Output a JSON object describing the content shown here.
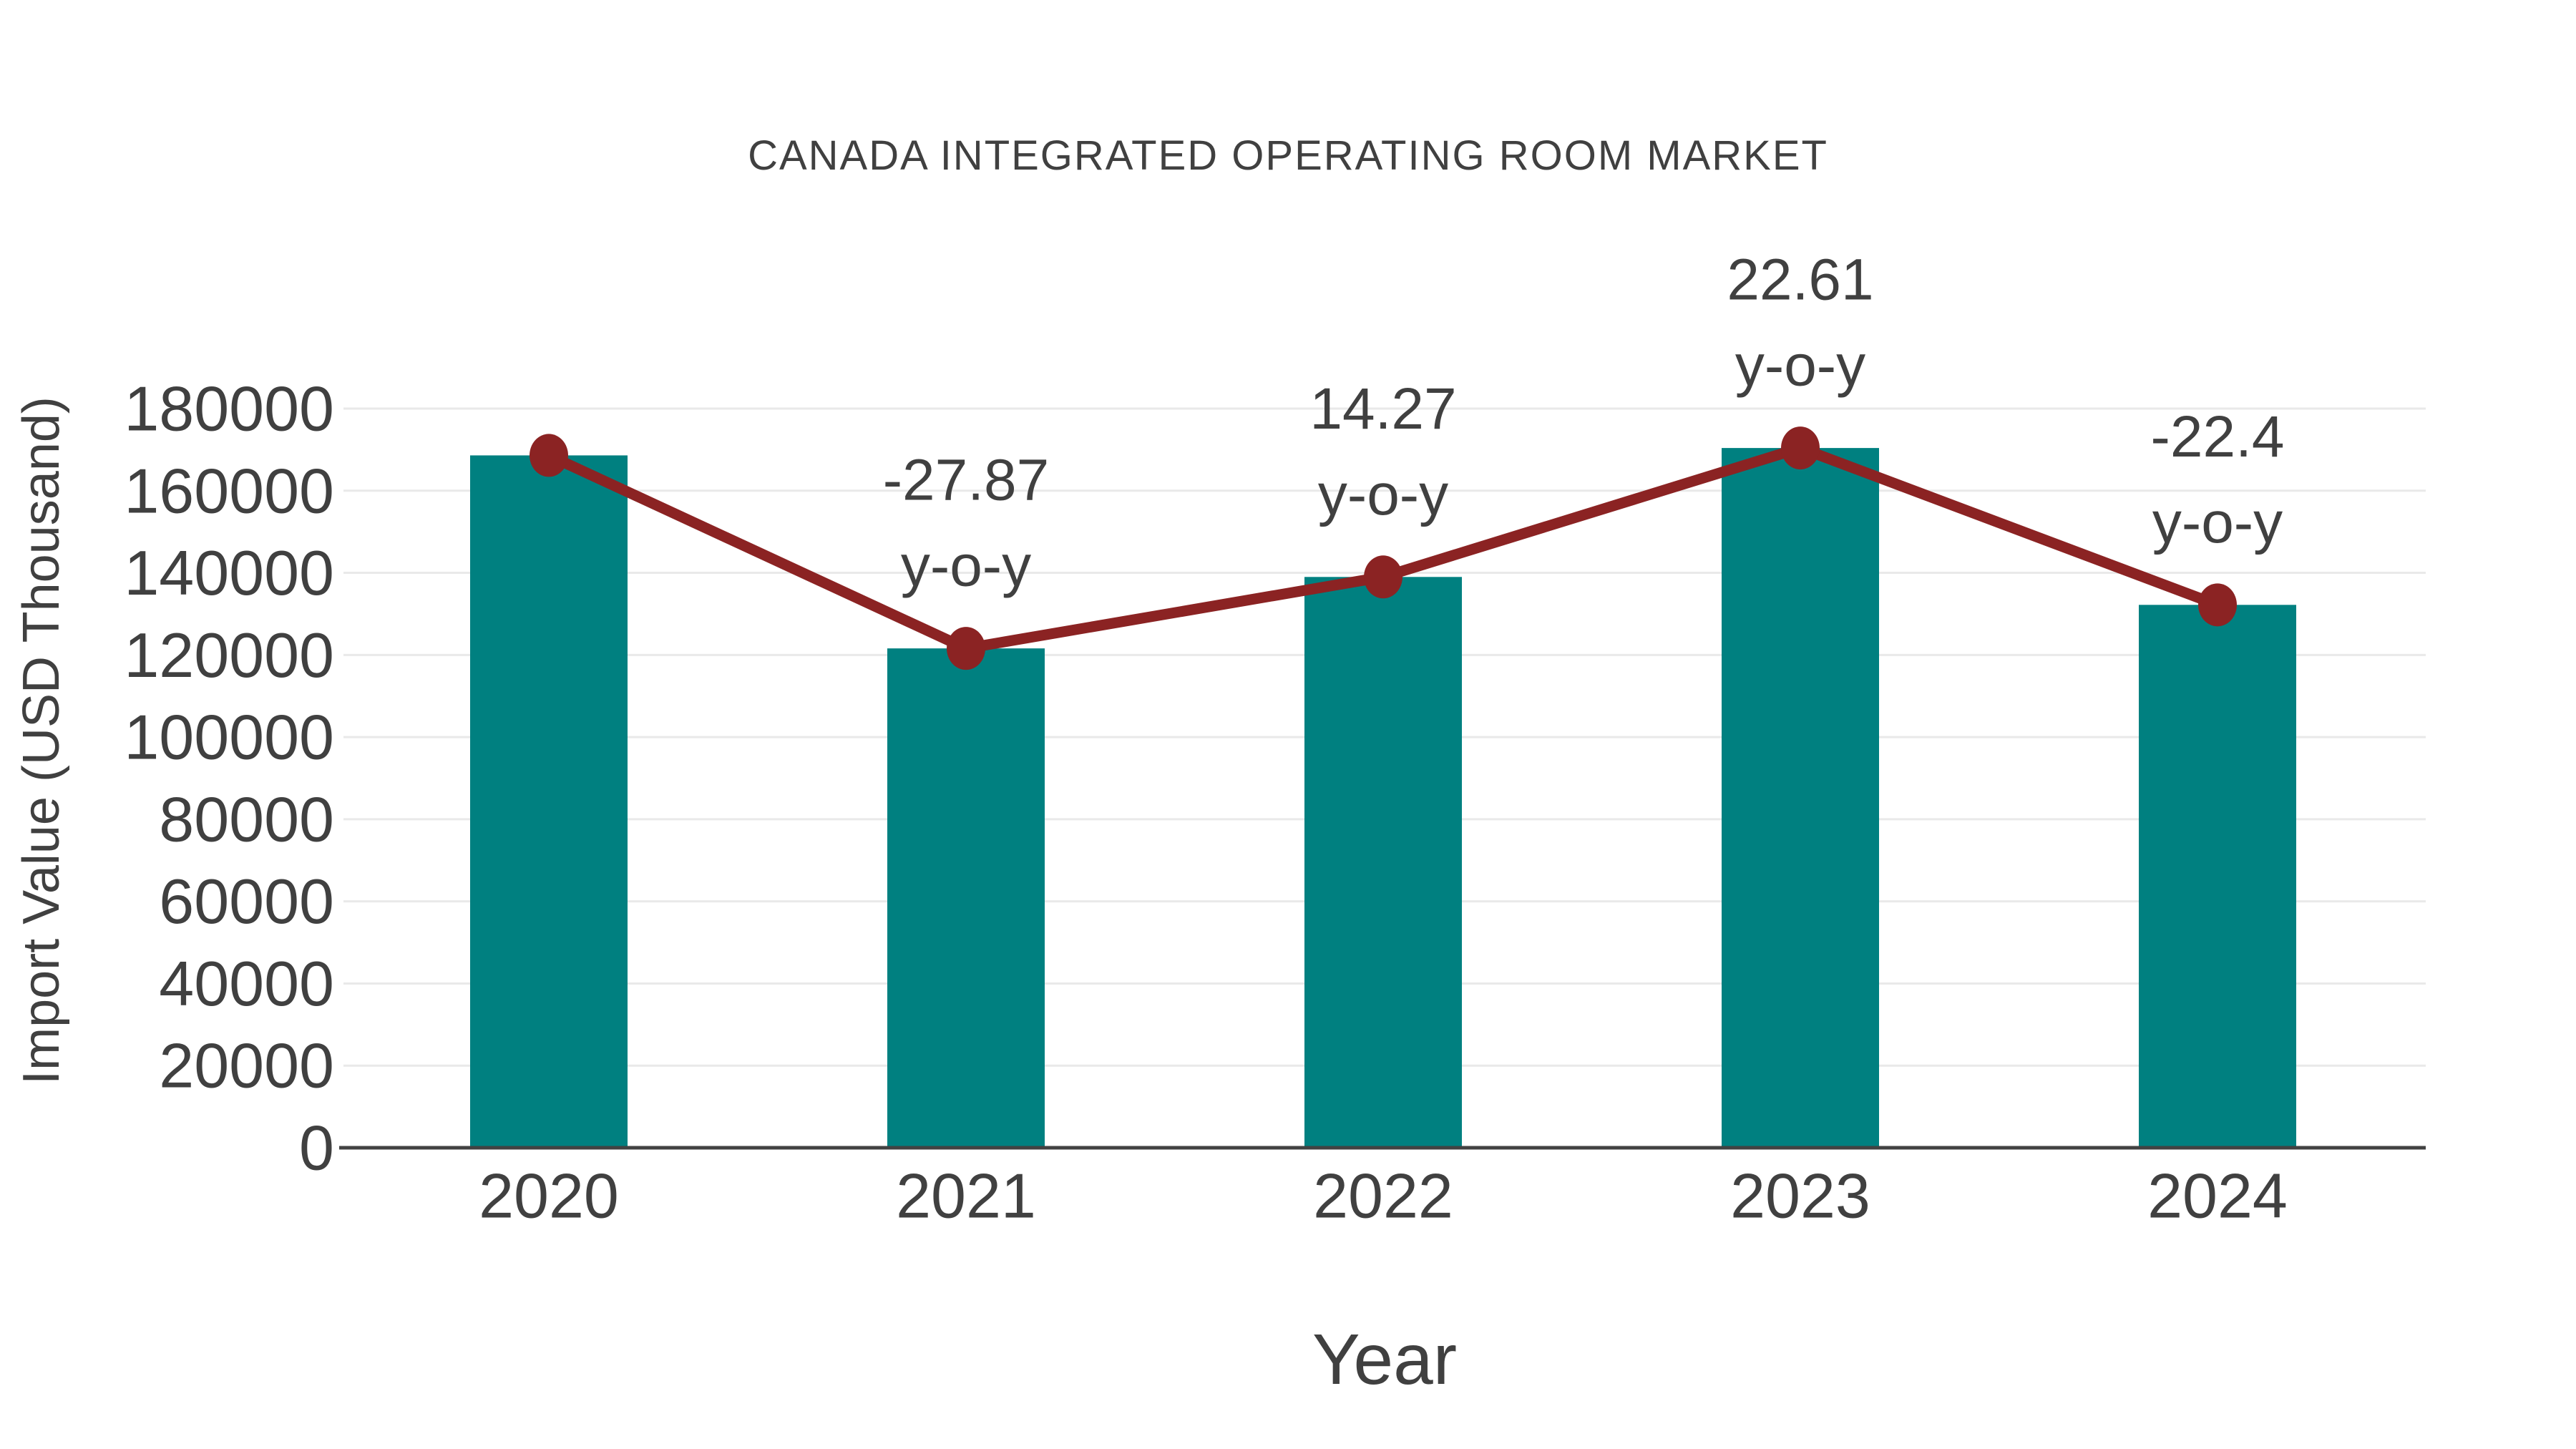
{
  "chart_data": {
    "type": "bar",
    "title": "CANADA INTEGRATED OPERATING ROOM MARKET",
    "xlabel": "Year",
    "ylabel": "Import Value (USD Thousand)",
    "categories": [
      "2020",
      "2021",
      "2022",
      "2023",
      "2024"
    ],
    "series": [
      {
        "name": "Import Value",
        "type": "bar",
        "color": "#008080",
        "values": [
          168600,
          121600,
          139000,
          170400,
          132200
        ]
      },
      {
        "name": "y-o-y change line",
        "type": "line",
        "color": "#8B2323",
        "values": [
          168600,
          121600,
          139000,
          170400,
          132200
        ],
        "point_labels": [
          "",
          "-27.87",
          "14.27",
          "22.61",
          "-22.4"
        ],
        "point_label_suffix": "y-o-y"
      }
    ],
    "ylim": [
      0,
      180000
    ],
    "ytick_step": 20000,
    "yticks": [
      "0",
      "20000",
      "40000",
      "60000",
      "80000",
      "100000",
      "120000",
      "140000",
      "160000",
      "180000"
    ],
    "grid": "horizontal",
    "legend_position": "none",
    "colors": {
      "text": "#404040",
      "grid": "#e9e9e9",
      "axis": "#424242",
      "background": "#ffffff"
    }
  }
}
